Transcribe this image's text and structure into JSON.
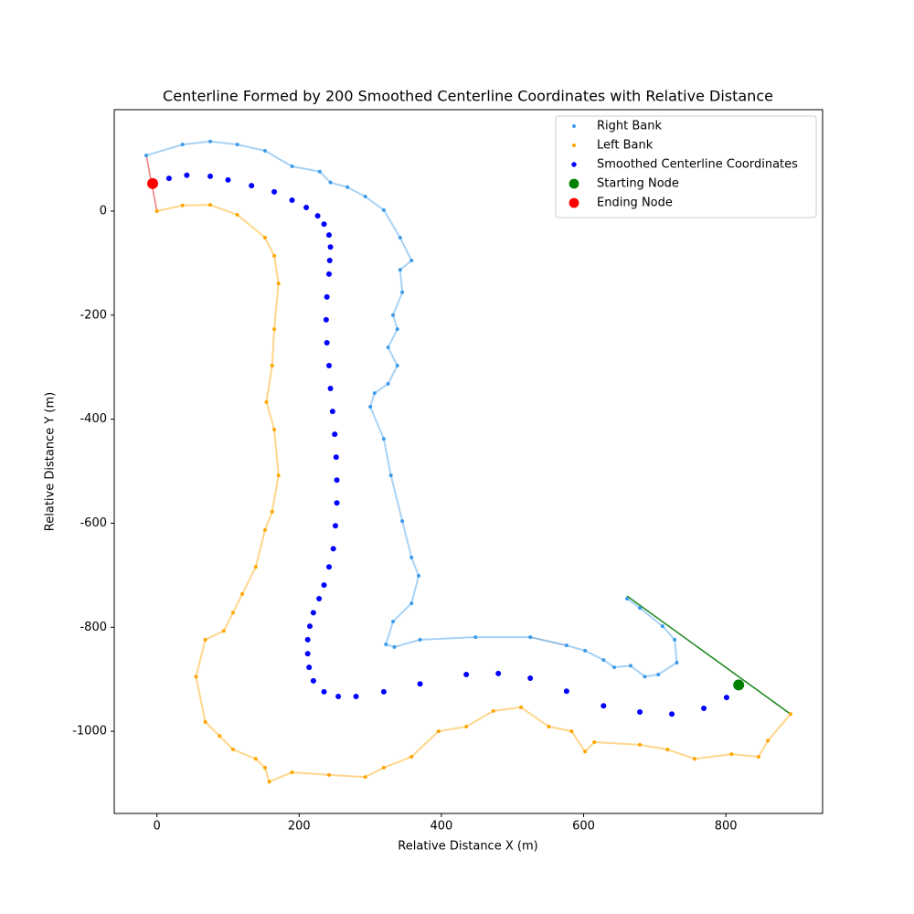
{
  "chart_data": {
    "type": "scatter",
    "title": "Centerline Formed by 200 Smoothed Centerline Coordinates with Relative Distance",
    "x_label": "Relative Distance X (m)",
    "y_label": "Relative Distance Y (m)",
    "xlim": [
      -60,
      936
    ],
    "ylim": [
      -1158,
      195
    ],
    "xticks": [
      0,
      200,
      400,
      600,
      800
    ],
    "yticks": [
      -1000,
      -800,
      -600,
      -400,
      -200,
      0
    ],
    "legend": "upper right",
    "series": [
      {
        "name": "Right Bank",
        "color": "#3d9be9",
        "size": 2,
        "x": [
          -15,
          36,
          75,
          113,
          152,
          190,
          229,
          244,
          268,
          293,
          319,
          342,
          358,
          342,
          345,
          332,
          338,
          325,
          338,
          325,
          306,
          300,
          319,
          329,
          345,
          358,
          368,
          358,
          332,
          322,
          334,
          370,
          448,
          525,
          576,
          602,
          628,
          643,
          666,
          686,
          705,
          731,
          728,
          711,
          679,
          661
        ],
        "y": [
          107,
          128,
          134,
          128,
          116,
          86,
          76,
          55,
          46,
          28,
          2,
          -51,
          -95,
          -113,
          -156,
          -200,
          -227,
          -262,
          -297,
          -332,
          -350,
          -376,
          -438,
          -508,
          -596,
          -666,
          -701,
          -754,
          -789,
          -833,
          -838,
          -824,
          -819,
          -819,
          -835,
          -845,
          -863,
          -877,
          -874,
          -895,
          -891,
          -868,
          -824,
          -798,
          -763,
          -745
        ]
      },
      {
        "name": "Left Bank",
        "color": "#ffa500",
        "size": 2,
        "x": [
          0,
          36,
          75,
          113,
          152,
          165,
          171,
          165,
          162,
          154,
          165,
          171,
          162,
          152,
          139,
          120,
          107,
          94,
          68,
          55,
          68,
          88,
          107,
          139,
          152,
          158,
          190,
          242,
          293,
          319,
          358,
          396,
          435,
          473,
          512,
          551,
          583,
          602,
          615,
          679,
          718,
          756,
          808,
          846,
          859,
          891
        ],
        "y": [
          0,
          11,
          12,
          -7,
          -51,
          -86,
          -139,
          -227,
          -297,
          -367,
          -420,
          -508,
          -578,
          -613,
          -684,
          -736,
          -772,
          -807,
          -824,
          -895,
          -982,
          -1009,
          -1035,
          -1053,
          -1070,
          -1097,
          -1079,
          -1084,
          -1088,
          -1070,
          -1049,
          -1000,
          -991,
          -961,
          -954,
          -991,
          -1000,
          -1039,
          -1021,
          -1026,
          -1035,
          -1053,
          -1044,
          -1049,
          -1018,
          -967
        ]
      },
      {
        "name": "Smoothed Centerline Coordinates",
        "color": "#0000ff",
        "size": 3,
        "x": [
          -6,
          17,
          42,
          75,
          100,
          133,
          165,
          190,
          210,
          226,
          235,
          242,
          244,
          243,
          242,
          239,
          238,
          239,
          242,
          244,
          247,
          250,
          252,
          253,
          253,
          251,
          248,
          242,
          235,
          228,
          220,
          215,
          212,
          212,
          214,
          220,
          235,
          255,
          280,
          319,
          370,
          435,
          480,
          525,
          576,
          628,
          679,
          724,
          769,
          801,
          818
        ],
        "y": [
          53,
          63,
          69,
          67,
          60,
          49,
          37,
          21,
          7,
          -9,
          -25,
          -46,
          -69,
          -95,
          -121,
          -165,
          -209,
          -253,
          -297,
          -341,
          -385,
          -429,
          -473,
          -517,
          -561,
          -605,
          -649,
          -684,
          -719,
          -745,
          -772,
          -798,
          -824,
          -851,
          -877,
          -903,
          -924,
          -933,
          -933,
          -924,
          -909,
          -891,
          -889,
          -898,
          -923,
          -951,
          -963,
          -967,
          -956,
          -935,
          -912
        ]
      },
      {
        "name": "Starting Node",
        "color": "#008000",
        "size": 6,
        "x": [
          818
        ],
        "y": [
          -911
        ]
      },
      {
        "name": "Ending Node",
        "color": "#ff0000",
        "size": 6,
        "x": [
          -6
        ],
        "y": [
          53
        ]
      }
    ],
    "lines": [
      {
        "color": "#f08080",
        "x": [
          -15,
          0
        ],
        "y": [
          107,
          0
        ]
      },
      {
        "color": "#228b22",
        "x": [
          661,
          891
        ],
        "y": [
          -740,
          -967
        ]
      },
      {
        "color": "#d3d3d3",
        "x": [
          525,
          576
        ],
        "y": [
          -819,
          -835
        ]
      }
    ]
  }
}
